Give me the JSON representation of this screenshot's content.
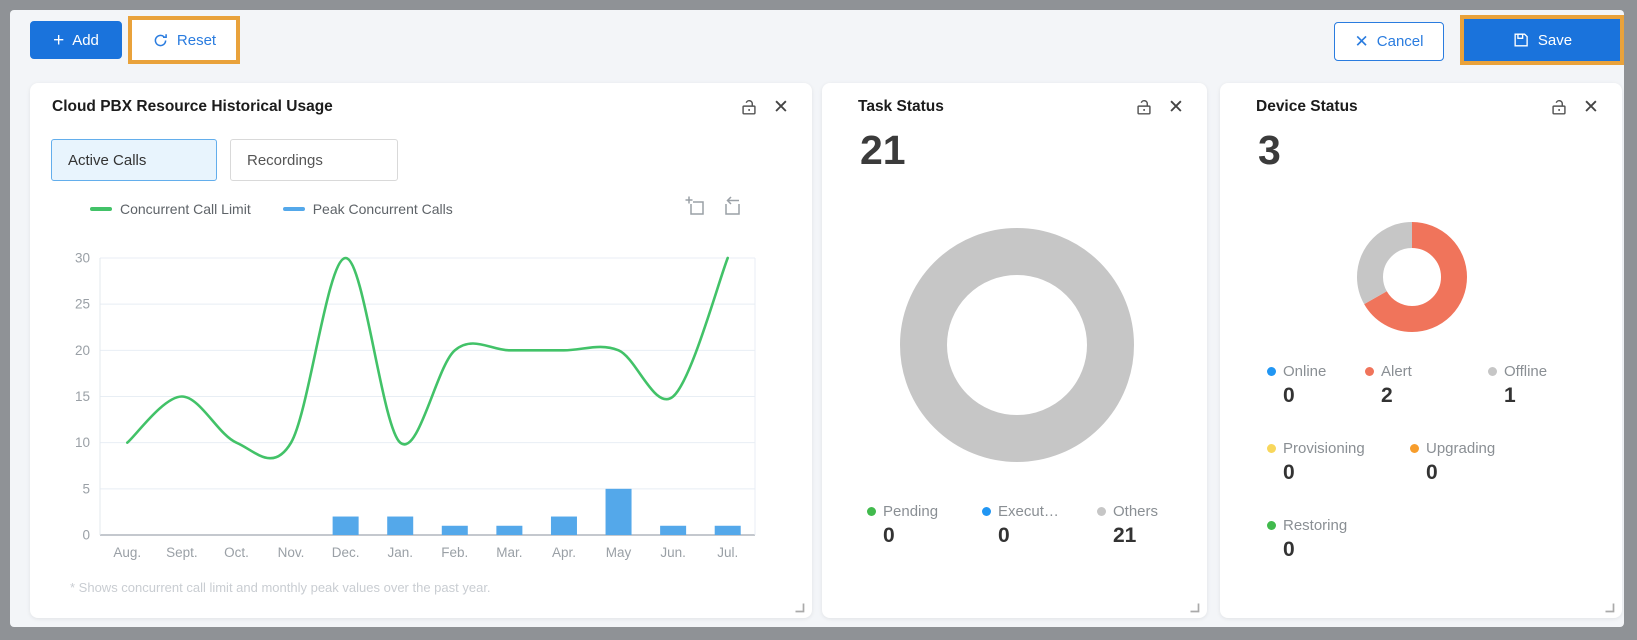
{
  "toolbar": {
    "add": {
      "label": "Add"
    },
    "reset": {
      "label": "Reset"
    },
    "cancel": {
      "label": "Cancel"
    },
    "save": {
      "label": "Save"
    },
    "primary_color": "#1a73dc",
    "link_color": "#2a7cdf",
    "highlight_color": "#E9A23B"
  },
  "cards": {
    "pbx": {
      "title": "Cloud PBX Resource Historical Usage",
      "tabs": [
        {
          "label": "Active Calls",
          "active": true
        },
        {
          "label": "Recordings",
          "active": false
        }
      ],
      "legend": [
        {
          "label": "Concurrent Call Limit",
          "color": "#42c268"
        },
        {
          "label": "Peak Concurrent Calls",
          "color": "#54a8ea"
        }
      ],
      "footnote": "* Shows concurrent call limit and monthly peak values over the past year."
    },
    "task": {
      "title": "Task Status",
      "total": "21",
      "legend": [
        {
          "label": "Pending",
          "value": "0",
          "color": "#41ba4d"
        },
        {
          "label": "Execut…",
          "value": "0",
          "color": "#2196f3"
        },
        {
          "label": "Others",
          "value": "21",
          "color": "#c6c6c6"
        }
      ]
    },
    "device": {
      "title": "Device Status",
      "total": "3",
      "legend_rows": [
        [
          {
            "label": "Online",
            "value": "0",
            "color": "#2196f3"
          },
          {
            "label": "Alert",
            "value": "2",
            "color": "#f0745b"
          },
          {
            "label": "Offline",
            "value": "1",
            "color": "#c6c6c6"
          }
        ],
        [
          {
            "label": "Provisioning",
            "value": "0",
            "color": "#f8d75c"
          },
          {
            "label": "Upgrading",
            "value": "0",
            "color": "#f79d2c"
          }
        ],
        [
          {
            "label": "Restoring",
            "value": "0",
            "color": "#41ba4d"
          }
        ]
      ]
    }
  },
  "chart_data": [
    {
      "type": "line+bar",
      "title": "Cloud PBX Resource Historical Usage — Active Calls",
      "categories": [
        "Aug.",
        "Sept.",
        "Oct.",
        "Nov.",
        "Dec.",
        "Jan.",
        "Feb.",
        "Mar.",
        "Apr.",
        "May",
        "Jun.",
        "Jul."
      ],
      "ylim": [
        0,
        30
      ],
      "ytick_step": 5,
      "grid": true,
      "legend_position": "top",
      "series": [
        {
          "name": "Concurrent Call Limit",
          "type": "line",
          "color": "#42c268",
          "values": [
            10,
            15,
            10,
            10,
            30,
            10,
            20,
            20,
            20,
            20,
            15,
            30
          ]
        },
        {
          "name": "Peak Concurrent Calls",
          "type": "bar",
          "color": "#54a8ea",
          "values": [
            0,
            0,
            0,
            0,
            2,
            2,
            1,
            1,
            2,
            5,
            1,
            1
          ]
        }
      ]
    },
    {
      "type": "pie",
      "title": "Task Status",
      "total": 21,
      "labels": [
        "Pending",
        "Executing",
        "Others"
      ],
      "values": [
        0,
        0,
        21
      ],
      "colors": [
        "#41ba4d",
        "#2196f3",
        "#c6c6c6"
      ]
    },
    {
      "type": "pie",
      "title": "Device Status",
      "total": 3,
      "labels": [
        "Online",
        "Alert",
        "Offline",
        "Provisioning",
        "Upgrading",
        "Restoring"
      ],
      "values": [
        0,
        2,
        1,
        0,
        0,
        0
      ],
      "colors": [
        "#2196f3",
        "#f0745b",
        "#c6c6c6",
        "#f8d75c",
        "#f79d2c",
        "#41ba4d"
      ]
    }
  ]
}
